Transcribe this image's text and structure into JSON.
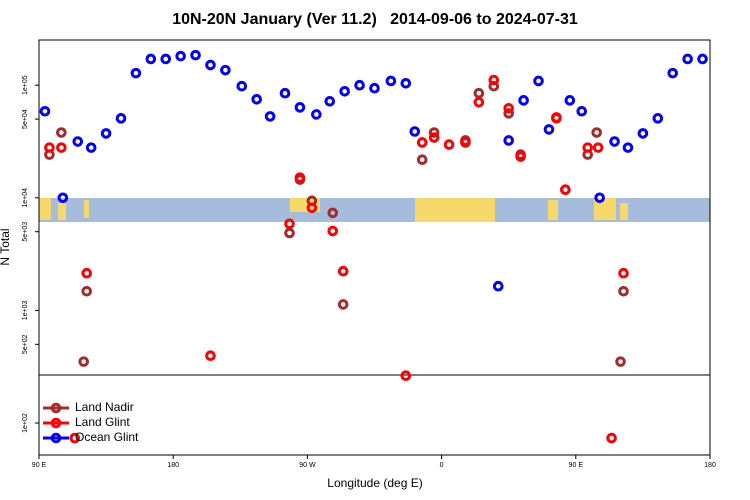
{
  "chart_data": {
    "type": "scatter",
    "title": "10N-20N January (Ver 11.2)   2014-09-06 to 2024-07-31",
    "xlabel": "Longitude (deg E)",
    "ylabel": "N Total",
    "xlim": [
      90,
      540
    ],
    "xticks": [
      {
        "value": 90,
        "label": "90 E"
      },
      {
        "value": 180,
        "label": "180"
      },
      {
        "value": 270,
        "label": "90 W"
      },
      {
        "value": 360,
        "label": "0"
      },
      {
        "value": 450,
        "label": "90 E"
      },
      {
        "value": 540,
        "label": "180"
      }
    ],
    "ylim": [
      52,
      252000
    ],
    "log_y": true,
    "yticks": [
      {
        "value": 100,
        "label": "1e+02"
      },
      {
        "value": 500,
        "label": "5e+02"
      },
      {
        "value": 1000,
        "label": "1e+03"
      },
      {
        "value": 5000,
        "label": "5e+03"
      },
      {
        "value": 10000,
        "label": "1e+04"
      },
      {
        "value": 50000,
        "label": "5e+04"
      },
      {
        "value": 100000,
        "label": "1e+05"
      }
    ],
    "legend": "bottom-left",
    "series": [
      {
        "name": "Land Nadir",
        "color": "#a52a2a",
        "x": [
          97,
          105,
          122,
          120,
          258,
          265,
          273,
          287,
          294,
          347,
          355,
          376,
          385,
          395,
          405,
          413,
          437,
          443,
          458,
          464,
          482,
          480
        ],
        "values": [
          24200,
          38000,
          1480,
          351,
          4870,
          14500,
          9400,
          7350,
          1130,
          21800,
          38000,
          32300,
          84900,
          98000,
          56200,
          24200,
          50800,
          11800,
          24200,
          38000,
          1480,
          351
        ]
      },
      {
        "name": "Land Glint",
        "color": "#ff0000",
        "x": [
          97,
          105,
          122,
          205,
          258,
          265,
          273,
          287,
          294,
          336,
          347,
          355,
          365,
          376,
          385,
          395,
          405,
          413,
          437,
          443,
          458,
          465,
          482,
          474,
          114
        ],
        "values": [
          27900,
          27900,
          2140,
          396,
          5870,
          15100,
          8150,
          5070,
          2230,
          263,
          31000,
          34300,
          29700,
          31000,
          70500,
          111000,
          62400,
          23200,
          51800,
          11800,
          27900,
          27900,
          2140,
          73.5,
          73.5
        ]
      },
      {
        "name": "Ocean Glint",
        "color": "#0000ff",
        "x": [
          94,
          106,
          116,
          125,
          135,
          145,
          155,
          165,
          175,
          185,
          195,
          205,
          215,
          226,
          236,
          245,
          255,
          265,
          276,
          285,
          295,
          305,
          315,
          326,
          336,
          342,
          398,
          405,
          415,
          425,
          432,
          446,
          454,
          466,
          476,
          485,
          495,
          505,
          515,
          525,
          535
        ],
        "values": [
          58700,
          10000,
          31600,
          27900,
          37300,
          50800,
          128000,
          171000,
          171000,
          181000,
          185000,
          151000,
          136000,
          98000,
          75000,
          52800,
          84900,
          63600,
          55000,
          72000,
          88300,
          100000,
          94000,
          109000,
          104000,
          38800,
          1640,
          32300,
          73400,
          109000,
          40500,
          73400,
          58700,
          10000,
          31600,
          27900,
          37300,
          50800,
          128000,
          171000,
          171000
        ]
      }
    ]
  }
}
